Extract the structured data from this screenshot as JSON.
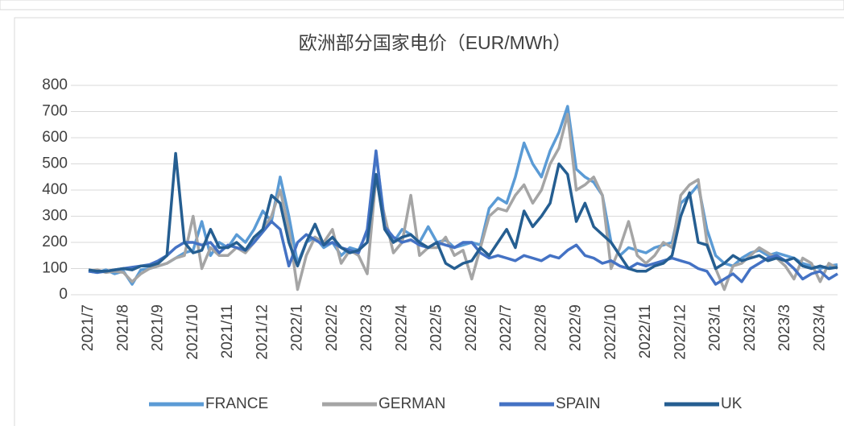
{
  "chart_data": {
    "type": "line",
    "title": "欧洲部分国家电价（EUR/MWh）",
    "categories": [
      "2021/7",
      null,
      null,
      null,
      "2021/8",
      null,
      null,
      null,
      "2021/9",
      null,
      null,
      null,
      "2021/10",
      null,
      null,
      null,
      "2021/11",
      null,
      null,
      null,
      "2021/12",
      null,
      null,
      null,
      "2022/1",
      null,
      null,
      null,
      "2022/2",
      null,
      null,
      null,
      "2022/3",
      null,
      null,
      null,
      "2022/4",
      null,
      null,
      null,
      "2022/5",
      null,
      null,
      null,
      "2022/6",
      null,
      null,
      null,
      "2022/7",
      null,
      null,
      null,
      "2022/8",
      null,
      null,
      null,
      "2022/9",
      null,
      null,
      null,
      "2022/10",
      null,
      null,
      null,
      "2022/11",
      null,
      null,
      null,
      "2022/12",
      null,
      null,
      null,
      "2023/1",
      null,
      null,
      null,
      "2023/2",
      null,
      null,
      null,
      "2023/3",
      null,
      null,
      null,
      "2023/4",
      null,
      null
    ],
    "series": [
      {
        "name": "FRANCE",
        "color": "#5b9bd5",
        "values": [
          90,
          85,
          95,
          80,
          90,
          40,
          95,
          100,
          110,
          120,
          140,
          160,
          170,
          280,
          150,
          200,
          180,
          230,
          200,
          250,
          320,
          280,
          450,
          300,
          120,
          200,
          220,
          180,
          200,
          150,
          180,
          170,
          240,
          540,
          280,
          200,
          250,
          230,
          200,
          260,
          200,
          210,
          180,
          190,
          200,
          190,
          330,
          370,
          350,
          450,
          580,
          500,
          450,
          550,
          620,
          720,
          480,
          450,
          430,
          380,
          200,
          150,
          180,
          170,
          160,
          180,
          190,
          200,
          350,
          380,
          420,
          250,
          150,
          120,
          110,
          140,
          160,
          170,
          150,
          160,
          150,
          140,
          120,
          110,
          100,
          110,
          115
        ]
      },
      {
        "name": "GERMAN",
        "color": "#a5a5a5",
        "values": [
          90,
          95,
          85,
          90,
          85,
          50,
          80,
          100,
          110,
          120,
          140,
          150,
          300,
          100,
          180,
          150,
          150,
          180,
          160,
          200,
          250,
          300,
          400,
          250,
          20,
          150,
          220,
          200,
          250,
          120,
          170,
          150,
          80,
          450,
          300,
          160,
          200,
          380,
          150,
          180,
          180,
          220,
          150,
          170,
          60,
          180,
          300,
          330,
          320,
          380,
          420,
          350,
          400,
          500,
          560,
          690,
          400,
          420,
          450,
          380,
          100,
          180,
          280,
          150,
          120,
          150,
          200,
          180,
          380,
          420,
          440,
          200,
          100,
          20,
          110,
          120,
          150,
          180,
          160,
          140,
          110,
          60,
          140,
          120,
          50,
          120,
          100
        ]
      },
      {
        "name": "SPAIN",
        "color": "#4472c4",
        "values": [
          90,
          85,
          90,
          95,
          100,
          105,
          110,
          115,
          130,
          150,
          180,
          200,
          200,
          190,
          200,
          160,
          190,
          180,
          170,
          200,
          240,
          280,
          250,
          110,
          200,
          230,
          210,
          190,
          200,
          180,
          170,
          160,
          250,
          550,
          260,
          220,
          200,
          210,
          190,
          180,
          200,
          190,
          180,
          200,
          200,
          160,
          140,
          150,
          140,
          130,
          150,
          140,
          130,
          150,
          140,
          170,
          190,
          150,
          140,
          120,
          130,
          110,
          100,
          120,
          110,
          120,
          130,
          140,
          130,
          120,
          100,
          90,
          40,
          60,
          80,
          50,
          100,
          120,
          140,
          150,
          130,
          100,
          60,
          80,
          90,
          60,
          80
        ]
      },
      {
        "name": "UK",
        "color": "#255e91",
        "values": [
          95,
          90,
          90,
          95,
          100,
          95,
          110,
          110,
          120,
          150,
          540,
          200,
          160,
          170,
          250,
          180,
          180,
          200,
          170,
          220,
          250,
          380,
          350,
          200,
          110,
          200,
          270,
          190,
          220,
          180,
          160,
          170,
          200,
          460,
          250,
          200,
          220,
          230,
          200,
          180,
          200,
          120,
          100,
          120,
          130,
          180,
          150,
          200,
          250,
          180,
          320,
          260,
          300,
          350,
          500,
          460,
          280,
          350,
          260,
          230,
          200,
          150,
          100,
          90,
          90,
          110,
          120,
          150,
          300,
          390,
          200,
          190,
          100,
          120,
          150,
          130,
          140,
          150,
          130,
          140,
          130,
          140,
          110,
          100,
          110,
          100,
          105
        ]
      }
    ],
    "ylim": [
      0,
      800
    ],
    "yticks": [
      0,
      100,
      200,
      300,
      400,
      500,
      600,
      700,
      800
    ],
    "grid": true,
    "legend": "bottom"
  }
}
